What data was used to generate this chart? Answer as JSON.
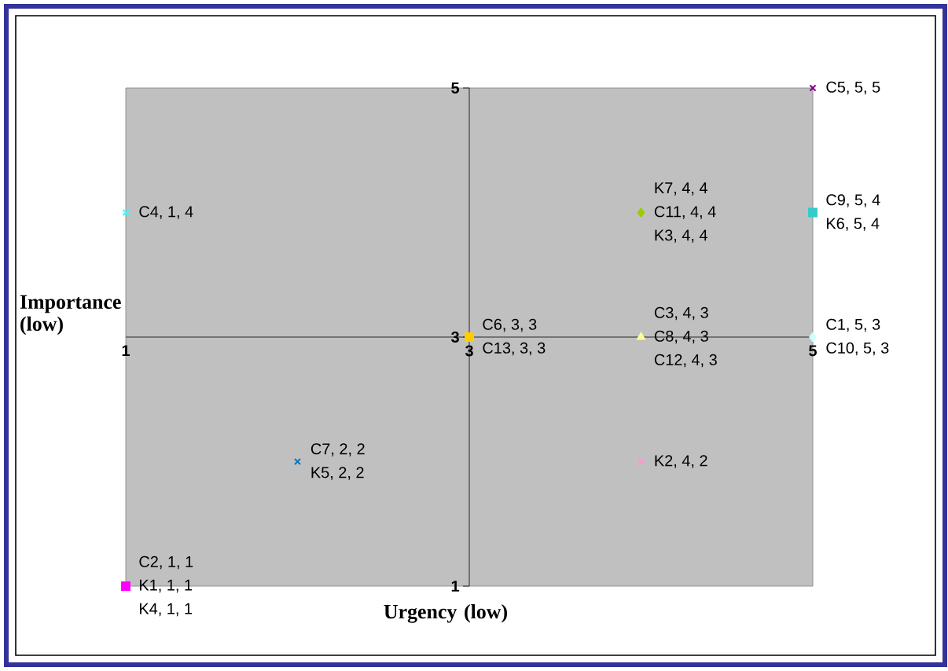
{
  "chart_data": {
    "type": "scatter",
    "xlabel": "Urgency (low)",
    "ylabel": "Importance (low)",
    "xlim": [
      1,
      5
    ],
    "ylim": [
      1,
      5
    ],
    "xticks": [
      1,
      3,
      5
    ],
    "yticks": [
      1,
      3,
      5
    ],
    "series": [
      {
        "x": [
          5
        ],
        "values": [
          5
        ],
        "color": "#800080",
        "marker": "cross"
      },
      {
        "x": [
          1
        ],
        "values": [
          4
        ],
        "color": "#33ffff",
        "marker": "cross"
      },
      {
        "x": [
          4
        ],
        "values": [
          4
        ],
        "color": "#99cc00",
        "marker": "diamond"
      },
      {
        "x": [
          5
        ],
        "values": [
          4
        ],
        "color": "#33cccc",
        "marker": "square"
      },
      {
        "x": [
          3
        ],
        "values": [
          3
        ],
        "color": "#ffcc00",
        "marker": "square"
      },
      {
        "x": [
          4
        ],
        "values": [
          3
        ],
        "color": "#ffff99",
        "marker": "triangle"
      },
      {
        "x": [
          5
        ],
        "values": [
          3
        ],
        "color": "#ccffff",
        "marker": "diamond"
      },
      {
        "x": [
          2
        ],
        "values": [
          2
        ],
        "color": "#0077cc",
        "marker": "cross"
      },
      {
        "x": [
          4
        ],
        "values": [
          2
        ],
        "color": "#ff99cc",
        "marker": "cross"
      },
      {
        "x": [
          1
        ],
        "values": [
          1
        ],
        "color": "#ff00ff",
        "marker": "square"
      }
    ],
    "annotations": [
      {
        "text": "C5, 5, 5",
        "x": 5,
        "y": 5
      },
      {
        "text": "C4, 1, 4",
        "x": 1,
        "y": 4
      },
      {
        "text": "K7, 4, 4",
        "x": 4,
        "y": 4
      },
      {
        "text": "C11, 4, 4",
        "x": 4,
        "y": 4
      },
      {
        "text": "K3, 4, 4",
        "x": 4,
        "y": 4
      },
      {
        "text": "C9, 5, 4",
        "x": 5,
        "y": 4
      },
      {
        "text": "K6, 5, 4",
        "x": 5,
        "y": 4
      },
      {
        "text": "C6, 3, 3",
        "x": 3,
        "y": 3
      },
      {
        "text": "C13, 3, 3",
        "x": 3,
        "y": 3
      },
      {
        "text": "C3, 4, 3",
        "x": 4,
        "y": 3
      },
      {
        "text": "C8, 4, 3",
        "x": 4,
        "y": 3
      },
      {
        "text": "C12, 4, 3",
        "x": 4,
        "y": 3
      },
      {
        "text": "C1, 5, 3",
        "x": 5,
        "y": 3
      },
      {
        "text": "C10, 5, 3",
        "x": 5,
        "y": 3
      },
      {
        "text": "C7, 2, 2",
        "x": 2,
        "y": 2
      },
      {
        "text": "K5, 2, 2",
        "x": 2,
        "y": 2
      },
      {
        "text": "K2, 4, 2",
        "x": 4,
        "y": 2
      },
      {
        "text": "C2, 1, 1",
        "x": 1,
        "y": 1
      },
      {
        "text": "K1, 1, 1",
        "x": 1,
        "y": 1
      },
      {
        "text": "K4, 1, 1",
        "x": 1,
        "y": 1
      }
    ]
  }
}
